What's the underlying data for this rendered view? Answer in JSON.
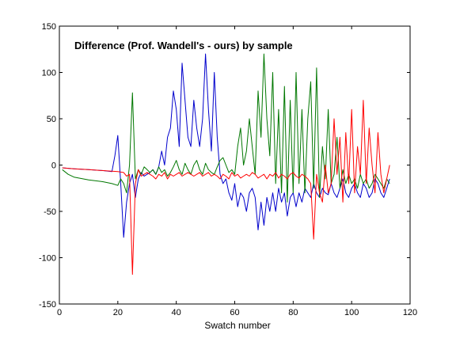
{
  "chart_data": {
    "type": "line",
    "title": "Difference (Prof. Wandell's - ours) by sample",
    "xlabel": "Swatch number",
    "ylabel": "",
    "xlim": [
      0,
      120
    ],
    "ylim": [
      -150,
      150
    ],
    "xticks": [
      0,
      20,
      40,
      60,
      80,
      100,
      120
    ],
    "yticks": [
      -150,
      -100,
      -50,
      0,
      50,
      100,
      150
    ],
    "grid": false,
    "legend": "none",
    "series": [
      {
        "color": "#0000cc",
        "x": [
          1,
          5,
          10,
          15,
          18,
          19,
          20,
          21,
          22,
          23,
          24,
          25,
          26,
          27,
          28,
          29,
          30,
          31,
          32,
          33,
          34,
          35,
          36,
          37,
          38,
          39,
          40,
          41,
          42,
          43,
          44,
          45,
          46,
          47,
          48,
          49,
          50,
          51,
          52,
          53,
          54,
          55,
          56,
          57,
          58,
          59,
          60,
          61,
          62,
          63,
          64,
          65,
          66,
          67,
          68,
          69,
          70,
          71,
          72,
          73,
          74,
          75,
          76,
          77,
          78,
          79,
          80,
          81,
          82,
          83,
          84,
          85,
          86,
          87,
          88,
          89,
          90,
          91,
          92,
          93,
          94,
          95,
          96,
          97,
          98,
          99,
          100,
          101,
          102,
          103,
          104,
          105,
          106,
          107,
          108,
          109,
          110,
          111,
          112,
          113
        ],
        "y": [
          -3,
          -4,
          -5,
          -6,
          -7,
          10,
          32,
          -20,
          -78,
          -40,
          -20,
          -10,
          -35,
          -15,
          -8,
          -12,
          -10,
          -8,
          -5,
          -10,
          -2,
          15,
          0,
          30,
          40,
          80,
          60,
          20,
          110,
          70,
          30,
          20,
          70,
          40,
          20,
          50,
          120,
          60,
          15,
          100,
          30,
          -10,
          -20,
          -15,
          -30,
          -38,
          -20,
          -45,
          -30,
          -35,
          -50,
          -30,
          -25,
          -35,
          -70,
          -40,
          -65,
          -35,
          -50,
          -30,
          -50,
          -25,
          -40,
          -30,
          -55,
          -35,
          -30,
          -45,
          -30,
          -40,
          -25,
          -30,
          -35,
          -20,
          -30,
          -35,
          -25,
          -30,
          -32,
          -20,
          -30,
          -35,
          -25,
          -15,
          -30,
          -35,
          -25,
          -20,
          -30,
          -35,
          -20,
          -25,
          -35,
          -30,
          -15,
          -20,
          -30,
          -35,
          -25,
          -15
        ]
      },
      {
        "color": "#007700",
        "x": [
          1,
          3,
          5,
          10,
          15,
          18,
          20,
          21,
          22,
          23,
          24,
          25,
          26,
          27,
          28,
          29,
          30,
          31,
          32,
          33,
          34,
          35,
          36,
          37,
          38,
          39,
          40,
          41,
          42,
          43,
          44,
          45,
          46,
          47,
          48,
          49,
          50,
          51,
          52,
          53,
          54,
          55,
          56,
          57,
          58,
          59,
          60,
          61,
          62,
          63,
          64,
          65,
          66,
          67,
          68,
          69,
          70,
          71,
          72,
          73,
          74,
          75,
          76,
          77,
          78,
          79,
          80,
          81,
          82,
          83,
          84,
          85,
          86,
          87,
          88,
          89,
          90,
          91,
          92,
          93,
          94,
          95,
          96,
          97,
          98,
          99,
          100,
          101,
          102,
          103,
          104,
          105,
          106,
          107,
          108,
          109,
          110,
          111,
          112,
          113
        ],
        "y": [
          -5,
          -10,
          -13,
          -16,
          -18,
          -20,
          -22,
          -15,
          -20,
          -30,
          0,
          78,
          -15,
          -5,
          -10,
          -2,
          -5,
          -8,
          -5,
          -10,
          -2,
          -8,
          -5,
          -12,
          -8,
          -2,
          5,
          -5,
          -10,
          2,
          -5,
          -10,
          0,
          5,
          -5,
          -10,
          2,
          -5,
          -8,
          -10,
          -2,
          5,
          8,
          0,
          -8,
          -5,
          -10,
          20,
          40,
          0,
          15,
          50,
          20,
          -10,
          80,
          30,
          120,
          50,
          10,
          100,
          -20,
          60,
          -30,
          85,
          -40,
          70,
          -30,
          100,
          -20,
          60,
          -30,
          50,
          90,
          -25,
          105,
          -35,
          20,
          -15,
          60,
          -20,
          -10,
          30,
          -25,
          -5,
          -20,
          -10,
          -20,
          -15,
          -25,
          -10,
          -20,
          -15,
          -25,
          -20,
          -10,
          -15,
          -20,
          -25,
          -15,
          -20
        ]
      },
      {
        "color": "#ff0000",
        "x": [
          1,
          5,
          10,
          15,
          20,
          22,
          23,
          24,
          25,
          26,
          27,
          28,
          29,
          30,
          31,
          32,
          33,
          34,
          35,
          36,
          37,
          38,
          39,
          40,
          41,
          42,
          43,
          44,
          45,
          46,
          47,
          48,
          49,
          50,
          51,
          52,
          53,
          54,
          55,
          56,
          57,
          58,
          59,
          60,
          61,
          62,
          63,
          64,
          65,
          66,
          67,
          68,
          69,
          70,
          71,
          72,
          73,
          74,
          75,
          76,
          77,
          78,
          79,
          80,
          81,
          82,
          83,
          84,
          85,
          86,
          87,
          88,
          89,
          90,
          91,
          92,
          93,
          94,
          95,
          96,
          97,
          98,
          99,
          100,
          101,
          102,
          103,
          104,
          105,
          106,
          107,
          108,
          109,
          110,
          111,
          112,
          113
        ],
        "y": [
          -3,
          -4,
          -5,
          -6,
          -7,
          -8,
          -12,
          -10,
          -118,
          -20,
          -5,
          -12,
          -10,
          -8,
          -10,
          -12,
          -15,
          -10,
          -12,
          -8,
          -15,
          -10,
          -12,
          -10,
          -8,
          -12,
          -10,
          -8,
          -10,
          -12,
          -10,
          -8,
          -12,
          -10,
          -8,
          -12,
          -10,
          -12,
          -15,
          -10,
          -12,
          -15,
          -8,
          -12,
          -10,
          -14,
          -12,
          -10,
          -12,
          -8,
          -10,
          -14,
          -12,
          -10,
          -15,
          -10,
          -12,
          -8,
          -14,
          -10,
          -12,
          -15,
          -10,
          -8,
          -12,
          -14,
          -10,
          -12,
          -15,
          -20,
          -80,
          -10,
          -30,
          -40,
          0,
          -30,
          -20,
          50,
          -10,
          30,
          -40,
          35,
          -20,
          60,
          -30,
          20,
          -10,
          70,
          -20,
          40,
          0,
          -30,
          35,
          -10,
          -30,
          -15,
          0
        ]
      }
    ]
  }
}
